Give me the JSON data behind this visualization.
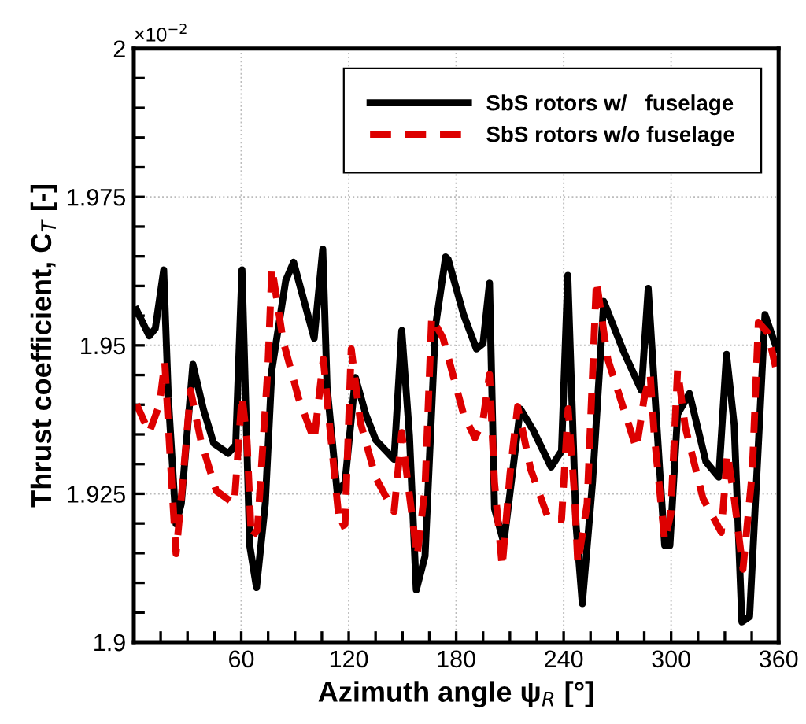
{
  "chart_data": {
    "type": "line",
    "xlabel": "Azimuth angle ψ$_{R}$ [°]",
    "ylabel": "Thrust coefficient, C$_{T}$ [-]",
    "annotations": [
      "×10$^{−2}$"
    ],
    "xlim": [
      0,
      360
    ],
    "ylim": [
      1.9,
      2
    ],
    "xticks": [
      {
        "value": 0,
        "label": null
      },
      {
        "value": 15,
        "label": null
      },
      {
        "value": 30,
        "label": null
      },
      {
        "value": 45,
        "label": null
      },
      60,
      {
        "value": 75,
        "label": null
      },
      {
        "value": 90,
        "label": null
      },
      {
        "value": 105,
        "label": null
      },
      120,
      {
        "value": 135,
        "label": null
      },
      {
        "value": 150,
        "label": null
      },
      {
        "value": 165,
        "label": null
      },
      180,
      {
        "value": 195,
        "label": null
      },
      {
        "value": 210,
        "label": null
      },
      {
        "value": 225,
        "label": null
      },
      240,
      {
        "value": 255,
        "label": null
      },
      {
        "value": 270,
        "label": null
      },
      {
        "value": 285,
        "label": null
      },
      300,
      {
        "value": 315,
        "label": null
      },
      {
        "value": 330,
        "label": null
      },
      {
        "value": 345,
        "label": null
      },
      360
    ],
    "yticks": [
      1.9,
      {
        "value": 1.905,
        "label": null
      },
      {
        "value": 1.91,
        "label": null
      },
      {
        "value": 1.915,
        "label": null
      },
      {
        "value": 1.92,
        "label": null
      },
      1.925,
      {
        "value": 1.93,
        "label": null
      },
      {
        "value": 1.935,
        "label": null
      },
      {
        "value": 1.94,
        "label": null
      },
      {
        "value": 1.945,
        "label": null
      },
      1.95,
      {
        "value": 1.955,
        "label": null
      },
      {
        "value": 1.96,
        "label": null
      },
      {
        "value": 1.965,
        "label": null
      },
      {
        "value": 1.97,
        "label": null
      },
      1.975,
      {
        "value": 1.98,
        "label": null
      },
      {
        "value": 1.985,
        "label": null
      },
      {
        "value": 1.99,
        "label": null
      },
      {
        "value": 1.995,
        "label": null
      },
      2
    ],
    "grid": true,
    "legend": "top right",
    "marker": "none",
    "series": [
      {
        "name": "SbS rotors w/   fuselage",
        "color": "#000000",
        "line_style": "solid",
        "x": [
          1.5,
          8.6,
          12,
          16.7,
          19.3,
          23.6,
          26.5,
          33,
          38.8,
          44.6,
          52.7,
          56.9,
          60.4,
          64.7,
          68.5,
          73.4,
          77.1,
          84.8,
          89.2,
          100.7,
          105.5,
          107.9,
          113.6,
          117.9,
          123.7,
          129.5,
          135.2,
          145.3,
          149.6,
          153.9,
          157.7,
          162.6,
          168.4,
          174.1,
          175.5,
          184.1,
          191.3,
          195,
          198.6,
          201.4,
          206.6,
          215.8,
          223,
          233,
          238.8,
          242.3,
          246.9,
          250.4,
          256.1,
          262.4,
          273.4,
          283.4,
          287.2,
          293.5,
          296.4,
          299.3,
          303.6,
          310.2,
          319.4,
          326.6,
          330.9,
          335.2,
          339.5,
          343.8,
          352.4,
          359
        ],
        "values": [
          1.956,
          1.9516,
          1.9528,
          1.9627,
          1.9411,
          1.9199,
          1.9233,
          1.9468,
          1.9393,
          1.9335,
          1.9318,
          1.9332,
          1.9627,
          1.9163,
          1.9092,
          1.9233,
          1.9459,
          1.9609,
          1.964,
          1.9512,
          1.9662,
          1.943,
          1.9251,
          1.9269,
          1.9446,
          1.9384,
          1.934,
          1.9308,
          1.9525,
          1.9348,
          1.9088,
          1.9145,
          1.9531,
          1.9649,
          1.9645,
          1.9552,
          1.9494,
          1.9503,
          1.9605,
          1.9225,
          1.9167,
          1.9393,
          1.9357,
          1.9295,
          1.9322,
          1.9618,
          1.9198,
          1.9065,
          1.9269,
          1.9574,
          1.949,
          1.9424,
          1.9596,
          1.9295,
          1.9163,
          1.9163,
          1.9384,
          1.9419,
          1.9304,
          1.9278,
          1.9485,
          1.9366,
          1.9034,
          1.9043,
          1.9552,
          1.9494
        ]
      },
      {
        "name": "SbS rotors w/o fuselage",
        "color": "#dd0000",
        "line_style": "dashed",
        "x": [
          1.5,
          8.6,
          14.4,
          17.3,
          20.1,
          23.6,
          27.3,
          31.7,
          37.4,
          46,
          56.1,
          60.4,
          63.2,
          65.6,
          69,
          74.8,
          77.1,
          83.4,
          92.1,
          100.7,
          105.8,
          109.3,
          115,
          117.9,
          121.4,
          126.6,
          135.2,
          145.3,
          149.6,
          153,
          158.2,
          162.6,
          166.3,
          172.7,
          184.1,
          190.5,
          195,
          198.6,
          201.4,
          205.7,
          210,
          214.3,
          221.6,
          231.6,
          238.8,
          242.5,
          246,
          247.9,
          253.1,
          258.3,
          264.6,
          280.6,
          284.9,
          288.3,
          290.6,
          296.4,
          299.8,
          303.6,
          307.9,
          317.8,
          328,
          331.4,
          335.2,
          340.1,
          345.3,
          348.7,
          354,
          358.3
        ],
        "values": [
          1.9401,
          1.9353,
          1.9401,
          1.9472,
          1.9322,
          1.9149,
          1.9269,
          1.9424,
          1.934,
          1.9255,
          1.9233,
          1.9415,
          1.934,
          1.9176,
          1.9189,
          1.9459,
          1.9631,
          1.9507,
          1.941,
          1.934,
          1.9477,
          1.9366,
          1.9194,
          1.9198,
          1.9494,
          1.9369,
          1.9276,
          1.922,
          1.9353,
          1.9269,
          1.9145,
          1.926,
          1.9547,
          1.9512,
          1.9384,
          1.9344,
          1.9375,
          1.9451,
          1.9269,
          1.9127,
          1.9282,
          1.9397,
          1.9291,
          1.9207,
          1.9207,
          1.9393,
          1.9251,
          1.9132,
          1.9233,
          1.9609,
          1.9477,
          1.9326,
          1.941,
          1.9451,
          1.9348,
          1.9171,
          1.9216,
          1.9459,
          1.9362,
          1.9242,
          1.9185,
          1.9318,
          1.9242,
          1.9123,
          1.9287,
          1.9539,
          1.9521,
          1.9464
        ]
      }
    ]
  }
}
